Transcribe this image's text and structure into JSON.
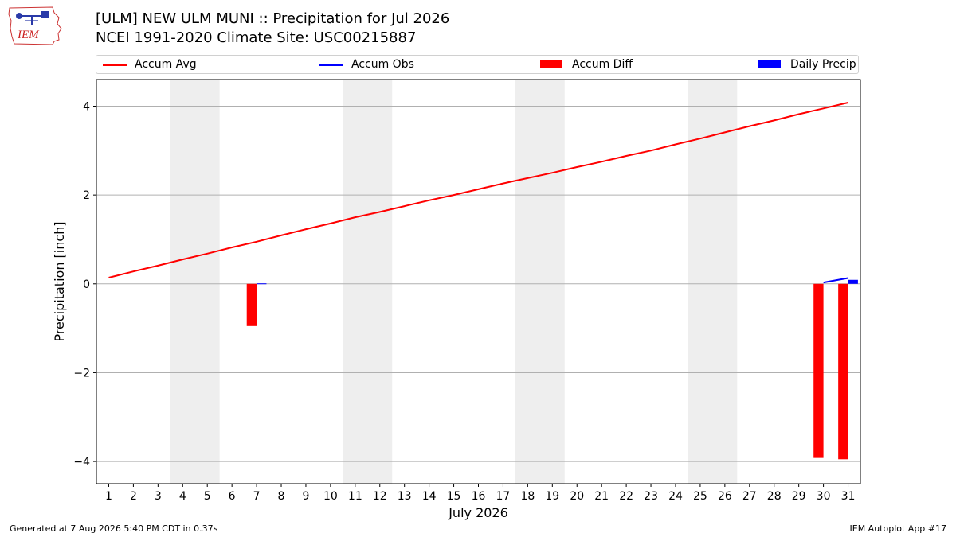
{
  "header": {
    "logo_text": "IEM",
    "title": "[ULM] NEW ULM MUNI :: Precipitation for Jul 2026",
    "subtitle": "NCEI 1991-2020 Climate Site: USC00215887"
  },
  "footer": {
    "generated": "Generated at 7 Aug 2026 5:40 PM CDT in 0.37s",
    "app": "IEM Autoplot App #17"
  },
  "colors": {
    "accum_avg": "#ff0000",
    "accum_obs": "#0000ff",
    "accum_diff": "#ff0000",
    "daily_precip": "#0000ff",
    "weekend_shade": "#eeeeee",
    "grid": "#b0b0b0"
  },
  "chart_data": {
    "type": "line",
    "xlabel": "July 2026",
    "ylabel": "Precipitation [inch]",
    "ylim": [
      -4.5,
      4.6
    ],
    "xlim": [
      0.5,
      31.5
    ],
    "yticks": [
      -4,
      -2,
      0,
      2,
      4
    ],
    "ytick_labels": [
      "−4",
      "−2",
      "0",
      "2",
      "4"
    ],
    "x": [
      1,
      2,
      3,
      4,
      5,
      6,
      7,
      8,
      9,
      10,
      11,
      12,
      13,
      14,
      15,
      16,
      17,
      18,
      19,
      20,
      21,
      22,
      23,
      24,
      25,
      26,
      27,
      28,
      29,
      30,
      31
    ],
    "xtick_labels": [
      "1",
      "2",
      "3",
      "4",
      "5",
      "6",
      "7",
      "8",
      "9",
      "10",
      "11",
      "12",
      "13",
      "14",
      "15",
      "16",
      "17",
      "18",
      "19",
      "20",
      "21",
      "22",
      "23",
      "24",
      "25",
      "26",
      "27",
      "28",
      "29",
      "30",
      "31"
    ],
    "grid": "horizontal",
    "legend_placement": "top",
    "weekend_spans": [
      [
        3.5,
        5.5
      ],
      [
        10.5,
        12.5
      ],
      [
        17.5,
        19.5
      ],
      [
        24.5,
        26.5
      ]
    ],
    "legend": [
      "Accum Avg",
      "Accum Obs",
      "Accum Diff",
      "Daily Precip"
    ],
    "series": [
      {
        "name": "Accum Avg",
        "kind": "line",
        "x": [
          1,
          2,
          3,
          4,
          5,
          6,
          7,
          8,
          9,
          10,
          11,
          12,
          13,
          14,
          15,
          16,
          17,
          18,
          19,
          20,
          21,
          22,
          23,
          24,
          25,
          26,
          27,
          28,
          29,
          30,
          31
        ],
        "values": [
          0.14,
          0.28,
          0.41,
          0.55,
          0.68,
          0.82,
          0.95,
          1.09,
          1.23,
          1.36,
          1.5,
          1.62,
          1.75,
          1.88,
          2.0,
          2.13,
          2.26,
          2.38,
          2.5,
          2.63,
          2.75,
          2.88,
          3.0,
          3.14,
          3.27,
          3.41,
          3.55,
          3.68,
          3.82,
          3.95,
          4.08
        ]
      },
      {
        "name": "Accum Obs",
        "kind": "line",
        "x": [
          30,
          31
        ],
        "values": [
          0.03,
          0.13
        ]
      },
      {
        "name": "Accum Diff",
        "kind": "bar",
        "x": [
          7,
          30,
          31
        ],
        "values": [
          -0.95,
          -3.92,
          -3.95
        ]
      },
      {
        "name": "Daily Precip",
        "kind": "bar",
        "x": [
          7,
          31
        ],
        "values": [
          0.01,
          0.09
        ]
      }
    ]
  }
}
